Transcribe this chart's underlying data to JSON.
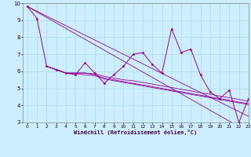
{
  "xlabel": "Windchill (Refroidissement éolien,°C)",
  "x_values": [
    0,
    1,
    2,
    3,
    4,
    5,
    6,
    7,
    8,
    9,
    10,
    11,
    12,
    13,
    14,
    15,
    16,
    17,
    18,
    19,
    20,
    21,
    22,
    23
  ],
  "line_main": [
    9.8,
    9.1,
    6.3,
    6.1,
    5.9,
    5.8,
    6.5,
    5.9,
    5.3,
    5.8,
    6.3,
    7.0,
    7.1,
    6.4,
    5.9,
    8.5,
    7.1,
    7.3,
    5.8,
    4.8,
    4.4,
    4.9,
    3.0,
    4.4
  ],
  "reg_line1": [
    9.8,
    9.52,
    9.24,
    8.96,
    8.68,
    8.4,
    8.12,
    7.84,
    7.56,
    7.28,
    7.0,
    6.72,
    6.44,
    6.16,
    5.88,
    5.6,
    5.32,
    5.04,
    4.76,
    4.48,
    4.2,
    3.92,
    3.64,
    3.36
  ],
  "reg_line2": [
    9.8,
    9.48,
    9.16,
    8.84,
    8.52,
    8.2,
    7.88,
    7.56,
    7.24,
    6.92,
    6.6,
    6.28,
    5.96,
    5.64,
    5.32,
    5.0,
    4.68,
    4.36,
    4.04,
    3.72,
    3.4,
    3.08,
    2.76,
    2.44
  ],
  "short_line1": [
    null,
    null,
    6.3,
    6.1,
    5.9,
    5.9,
    5.9,
    5.85,
    5.7,
    5.6,
    5.5,
    5.45,
    5.35,
    5.25,
    5.15,
    5.05,
    4.95,
    4.85,
    4.75,
    4.65,
    4.55,
    4.45,
    4.35,
    4.25
  ],
  "short_line2": [
    null,
    null,
    6.3,
    6.1,
    5.9,
    5.9,
    5.9,
    5.8,
    5.6,
    5.5,
    5.4,
    5.3,
    5.2,
    5.1,
    5.0,
    4.9,
    4.8,
    4.7,
    4.6,
    4.5,
    4.4,
    4.3,
    4.2,
    4.1
  ],
  "short_line3": [
    null,
    null,
    6.3,
    6.1,
    5.9,
    5.85,
    5.8,
    5.75,
    5.55,
    5.45,
    5.35,
    5.25,
    5.15,
    5.05,
    4.95,
    4.85,
    4.75,
    4.65,
    4.55,
    4.45,
    4.35,
    4.25,
    4.15,
    4.05
  ],
  "line_color": "#990099",
  "background_color": "#cceeff",
  "grid_color": "#aadddd",
  "ylim": [
    3,
    10
  ],
  "xlim": [
    -0.5,
    23
  ],
  "yticks": [
    3,
    4,
    5,
    6,
    7,
    8,
    9,
    10
  ],
  "xticks": [
    0,
    1,
    2,
    3,
    4,
    5,
    6,
    7,
    8,
    9,
    10,
    11,
    12,
    13,
    14,
    15,
    16,
    17,
    18,
    19,
    20,
    21,
    22,
    23
  ]
}
